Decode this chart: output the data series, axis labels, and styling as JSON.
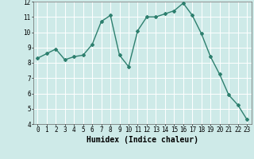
{
  "x": [
    0,
    1,
    2,
    3,
    4,
    5,
    6,
    7,
    8,
    9,
    10,
    11,
    12,
    13,
    14,
    15,
    16,
    17,
    18,
    19,
    20,
    21,
    22,
    23
  ],
  "y": [
    8.3,
    8.6,
    8.9,
    8.2,
    8.4,
    8.5,
    9.2,
    10.7,
    11.1,
    8.5,
    7.75,
    10.1,
    11.0,
    11.0,
    11.2,
    11.4,
    11.9,
    11.1,
    9.9,
    8.4,
    7.25,
    5.9,
    5.25,
    4.3
  ],
  "line_color": "#2d7f6e",
  "marker": "D",
  "markersize": 2,
  "linewidth": 1.0,
  "bg_color": "#ceeae8",
  "grid_color": "#ffffff",
  "xlabel": "Humidex (Indice chaleur)",
  "xlabel_fontsize": 7,
  "xlim": [
    -0.5,
    23.5
  ],
  "ylim": [
    4,
    12
  ],
  "yticks": [
    4,
    5,
    6,
    7,
    8,
    9,
    10,
    11,
    12
  ],
  "xticks": [
    0,
    1,
    2,
    3,
    4,
    5,
    6,
    7,
    8,
    9,
    10,
    11,
    12,
    13,
    14,
    15,
    16,
    17,
    18,
    19,
    20,
    21,
    22,
    23
  ],
  "tick_fontsize": 5.5
}
